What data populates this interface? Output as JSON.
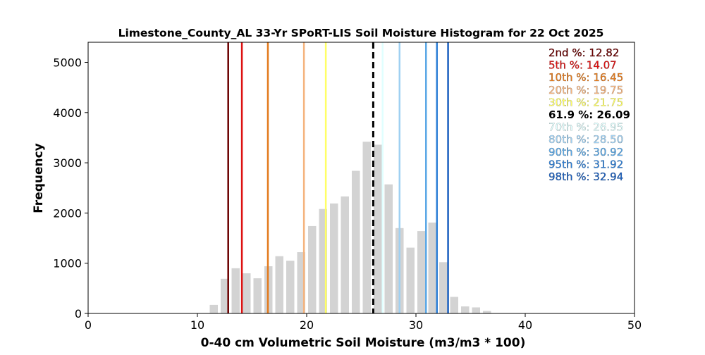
{
  "chart_data": {
    "type": "bar",
    "title": "Limestone_County_AL 33-Yr SPoRT-LIS Soil Moisture Histogram for 22 Oct 2025",
    "xlabel": "0-40 cm Volumetric Soil Moisture (m3/m3 * 100)",
    "ylabel": "Frequency",
    "xlim": [
      0,
      50
    ],
    "ylim": [
      0,
      5400
    ],
    "xticks": [
      "0",
      "10",
      "20",
      "30",
      "40",
      "50"
    ],
    "yticks": [
      "0",
      "1000",
      "2000",
      "3000",
      "4000",
      "5000"
    ],
    "bars": [
      {
        "x": 11.5,
        "value": 170
      },
      {
        "x": 12.5,
        "value": 690
      },
      {
        "x": 13.5,
        "value": 900
      },
      {
        "x": 14.5,
        "value": 800
      },
      {
        "x": 15.5,
        "value": 700
      },
      {
        "x": 16.5,
        "value": 940
      },
      {
        "x": 17.5,
        "value": 1140
      },
      {
        "x": 18.5,
        "value": 1050
      },
      {
        "x": 19.5,
        "value": 1220
      },
      {
        "x": 20.5,
        "value": 1740
      },
      {
        "x": 21.5,
        "value": 2080
      },
      {
        "x": 22.5,
        "value": 2190
      },
      {
        "x": 23.5,
        "value": 2330
      },
      {
        "x": 24.5,
        "value": 2840
      },
      {
        "x": 25.5,
        "value": 3420
      },
      {
        "x": 26.5,
        "value": 3360
      },
      {
        "x": 27.5,
        "value": 2570
      },
      {
        "x": 28.5,
        "value": 1700
      },
      {
        "x": 29.5,
        "value": 1310
      },
      {
        "x": 30.5,
        "value": 1640
      },
      {
        "x": 31.5,
        "value": 1810
      },
      {
        "x": 32.5,
        "value": 1020
      },
      {
        "x": 33.5,
        "value": 330
      },
      {
        "x": 34.5,
        "value": 140
      },
      {
        "x": 35.5,
        "value": 120
      },
      {
        "x": 36.5,
        "value": 50
      }
    ],
    "bar_color": "#d3d3d3",
    "percentiles": [
      {
        "label": "2nd %: 12.82",
        "x": 12.82,
        "color": "#6b0000"
      },
      {
        "label": "5th %: 14.07",
        "x": 14.07,
        "color": "#dd1111"
      },
      {
        "label": "10th %: 16.45",
        "x": 16.45,
        "color": "#e37a1c"
      },
      {
        "label": "20th %: 19.75",
        "x": 19.75,
        "color": "#f5b47e"
      },
      {
        "label": "30th %: 21.75",
        "x": 21.75,
        "color": "#ffff66"
      },
      {
        "label": "70th %: 26.95",
        "x": 26.95,
        "color": "#e0ffff"
      },
      {
        "label": "80th %: 28.50",
        "x": 28.5,
        "color": "#9fd0f2"
      },
      {
        "label": "90th %: 30.92",
        "x": 30.92,
        "color": "#5aa8e6"
      },
      {
        "label": "95th %: 31.92",
        "x": 31.92,
        "color": "#2e7fd6"
      },
      {
        "label": "98th %: 32.94",
        "x": 32.94,
        "color": "#1a5fbf"
      }
    ],
    "current": {
      "label": "61.9 %: 26.09",
      "x": 26.09,
      "color": "#000000"
    },
    "legend_order": [
      "2nd %: 12.82",
      "5th %: 14.07",
      "10th %: 16.45",
      "20th %: 19.75",
      "30th %: 21.75",
      "61.9 %: 26.09",
      "70th %: 26.95",
      "80th %: 28.50",
      "90th %: 30.92",
      "95th %: 31.92",
      "98th %: 32.94"
    ],
    "legend_placement": "top-right",
    "grid": false
  }
}
